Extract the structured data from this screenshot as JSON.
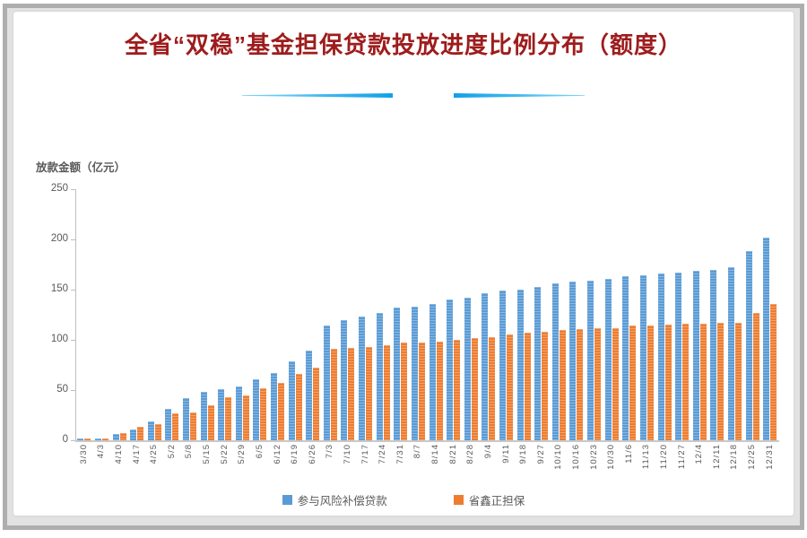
{
  "chart_data": {
    "type": "bar",
    "title": "全省“双稳”基金担保贷款投放进度比例分布（额度）",
    "ylabel": "放款金额（亿元）",
    "xlabel": "",
    "ylim": [
      0,
      250
    ],
    "yticks": [
      0,
      50,
      100,
      150,
      200,
      250
    ],
    "grid": false,
    "legend_position": "bottom",
    "categories": [
      "3/30",
      "4/3",
      "4/10",
      "4/17",
      "4/25",
      "5/2",
      "5/8",
      "5/15",
      "5/22",
      "5/29",
      "6/5",
      "6/12",
      "6/19",
      "6/26",
      "7/3",
      "7/10",
      "7/17",
      "7/24",
      "7/31",
      "8/7",
      "8/14",
      "8/21",
      "8/28",
      "9/4",
      "9/11",
      "9/18",
      "9/27",
      "10/10",
      "10/16",
      "10/23",
      "10/30",
      "11/6",
      "11/13",
      "11/20",
      "11/27",
      "12/4",
      "12/11",
      "12/18",
      "12/25",
      "12/31"
    ],
    "series": [
      {
        "name": "参与风险补偿贷款",
        "color": "#5B9BD5",
        "values": [
          2,
          2,
          6,
          11,
          19,
          31,
          42,
          48,
          51,
          54,
          61,
          67,
          79,
          89,
          114,
          120,
          123,
          127,
          132,
          133,
          136,
          140,
          142,
          146,
          149,
          150,
          153,
          156,
          158,
          159,
          161,
          163,
          164,
          166,
          167,
          169,
          170,
          172,
          188,
          202
        ]
      },
      {
        "name": "省鑫正担保",
        "color": "#ED7D31",
        "values": [
          2,
          2,
          7,
          13,
          16,
          27,
          28,
          35,
          43,
          45,
          52,
          57,
          66,
          72,
          91,
          92,
          93,
          95,
          97,
          97,
          98,
          100,
          102,
          103,
          105,
          107,
          108,
          110,
          111,
          112,
          112,
          114,
          114,
          115,
          116,
          116,
          117,
          117,
          127,
          136
        ]
      }
    ]
  },
  "colors": {
    "title_text": "#9E1C1C",
    "underline_accent_light": "#7FD4F7",
    "underline_accent_dark": "#0FA0E8",
    "axis_text": "#595959",
    "axis_line": "#BFBFBF",
    "baseline": "#C9C9C9"
  }
}
